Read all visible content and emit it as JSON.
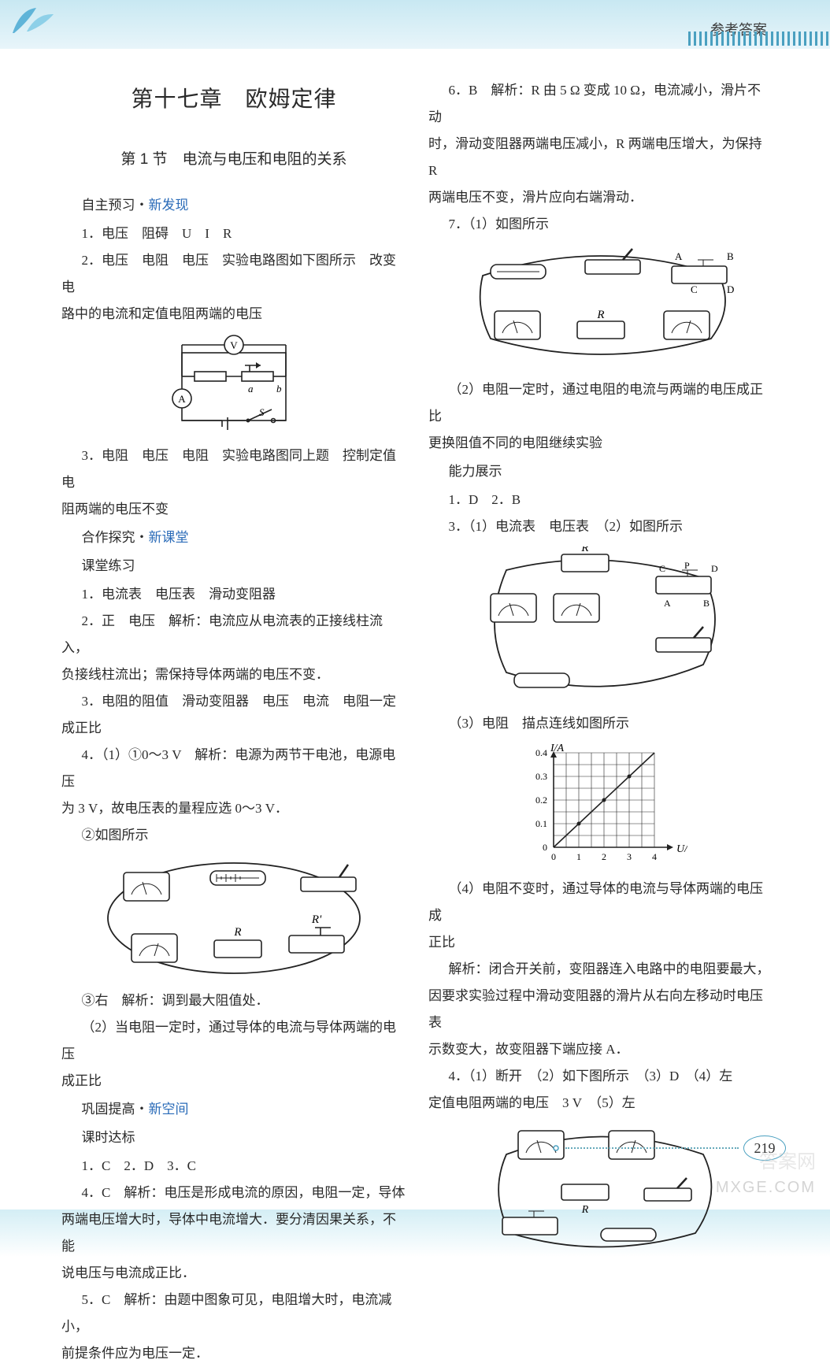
{
  "header": {
    "label": "参考答案"
  },
  "chapter_title": "第十七章　欧姆定律",
  "section_title": "第 1 节　电流与电压和电阻的关系",
  "left": {
    "h1": {
      "prefix": "自主预习・",
      "blue": "新发现"
    },
    "p1": "1．电压　阻碍　U　I　R",
    "p2a": "2．电压　电阻　电压　实验电路图如下图所示　改变电",
    "p2b": "路中的电流和定值电阻两端的电压",
    "fig1_labels": {
      "V": "V",
      "A": "A",
      "a": "a",
      "b": "b",
      "S": "S"
    },
    "p3a": "3．电阻　电压　电阻　实验电路图同上题　控制定值电",
    "p3b": "阻两端的电压不变",
    "h2": {
      "prefix": "合作探究・",
      "blue": "新课堂"
    },
    "h2b": "课堂练习",
    "p4": "1．电流表　电压表　滑动变阻器",
    "p5a": "2．正　电压　解析：电流应从电流表的正接线柱流入，",
    "p5b": "负接线柱流出；需保持导体两端的电压不变．",
    "p6a": "3．电阻的阻值　滑动变阻器　电压　电流　电阻一定",
    "p6b": "成正比",
    "p7a": "4．（1）①0～3 V　解析：电源为两节干电池，电源电压",
    "p7b": "为 3 V，故电压表的量程应选 0～3 V．",
    "p8": "②如图所示",
    "fig2_labels": {
      "R": "R",
      "R2": "R'"
    },
    "p9": "③右　解析：调到最大阻值处．",
    "p10a": "（2）当电阻一定时，通过导体的电流与导体两端的电压",
    "p10b": "成正比",
    "h3": {
      "prefix": "巩固提高・",
      "blue": "新空间"
    },
    "h3b": "课时达标",
    "p11": "1．C　2．D　3．C",
    "p12a": "4．C　解析：电压是形成电流的原因，电阻一定，导体",
    "p12b": "两端电压增大时，导体中电流增大．要分清因果关系，不能",
    "p12c": "说电压与电流成正比．",
    "p13a": "5．C　解析：由题中图象可见，电阻增大时，电流减小，",
    "p13b": "前提条件应为电压一定．"
  },
  "right": {
    "p1a": "6．B　解析：R 由 5 Ω 变成 10 Ω，电流减小，滑片不动",
    "p1b": "时，滑动变阻器两端电压减小，R 两端电压增大，为保持 R",
    "p1c": "两端电压不变，滑片应向右端滑动．",
    "p2": "7．（1）如图所示",
    "fig1_labels": {
      "A": "A",
      "B": "B",
      "C": "C",
      "D": "D",
      "R": "R"
    },
    "p3a": "（2）电阻一定时，通过电阻的电流与两端的电压成正比",
    "p3b": "更换阻值不同的电阻继续实验",
    "h1": "能力展示",
    "p4": "1．D　2．B",
    "p5": "3．（1）电流表　电压表　（2）如图所示",
    "fig2_labels": {
      "R": "R",
      "A": "A",
      "B": "B",
      "C": "C",
      "D": "D",
      "P": "P"
    },
    "p6": "（3）电阻　描点连线如图所示",
    "chart": {
      "ylabel": "I/A",
      "xlabel": "U/V",
      "yticks": [
        "0",
        "0.1",
        "0.2",
        "0.3",
        "0.4"
      ],
      "xticks": [
        "0",
        "1",
        "2",
        "3",
        "4"
      ],
      "points": [
        [
          1,
          0.1
        ],
        [
          2,
          0.2
        ],
        [
          3,
          0.3
        ]
      ],
      "grid_divisions": 8,
      "line_from": [
        0,
        0
      ],
      "line_to": [
        4,
        0.4
      ]
    },
    "p7a": "（4）电阻不变时，通过导体的电流与导体两端的电压成",
    "p7b": "正比",
    "p8a": "解析：闭合开关前，变阻器连入电路中的电阻要最大，",
    "p8b": "因要求实验过程中滑动变阻器的滑片从右向左移动时电压表",
    "p8c": "示数变大，故变阻器下端应接 A．",
    "p9a": "4．（1）断开　（2）如下图所示　（3）D　（4）左",
    "p9b": "定值电阻两端的电压　3 V　（5）左",
    "fig3_labels": {
      "R": "R"
    }
  },
  "page_number": "219",
  "watermark": "MXGE.COM",
  "watermark2": "答案网"
}
